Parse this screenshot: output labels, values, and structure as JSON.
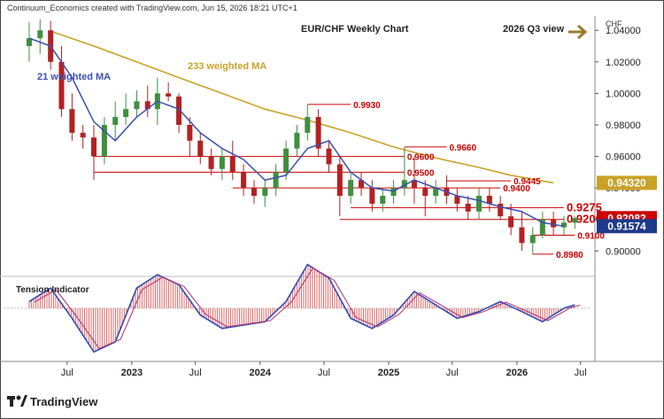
{
  "header": {
    "credit": "Continuum_Economics created with TradingView.com, Jun 15, 2026 18:21 UTC+1",
    "title": "EUR/CHF Weekly Chart",
    "view_label": "2026 Q3 view",
    "currency": "CHF"
  },
  "footer": {
    "brand": "TradingView"
  },
  "colors": {
    "candle_up": "#3f8f3f",
    "candle_down": "#b22222",
    "ma21": "#3a4fb0",
    "ma233": "#c9a227",
    "level": "#cc0000",
    "arrow": "#9a7a2e",
    "badge_ma233": "#c9a227",
    "badge_last": "#cc0000",
    "badge_blue": "#1f3a8a"
  },
  "chart_data": {
    "type": "candlestick",
    "title": "EUR/CHF Weekly Chart",
    "price_axis": {
      "ticks": [
        "1.04000",
        "1.02000",
        "1.00000",
        "0.98000",
        "0.96000",
        "0.94000",
        "0.92000",
        "0.90000"
      ],
      "range": [
        0.885,
        1.048
      ]
    },
    "time_axis": {
      "ticks": [
        "Jul",
        "2023",
        "Jul",
        "2024",
        "Jul",
        "2025",
        "Jul",
        "2026",
        "Jul"
      ]
    },
    "ma_labels": {
      "ma21": "21 weighted MA",
      "ma233": "233 weighted MA"
    },
    "levels": [
      {
        "label": "0.9930",
        "value": 0.993
      },
      {
        "label": "0.9660",
        "value": 0.966
      },
      {
        "label": "0.9600",
        "value": 0.96
      },
      {
        "label": "0.9500",
        "value": 0.95
      },
      {
        "label": "0.9445",
        "value": 0.9445
      },
      {
        "label": "0.9400",
        "value": 0.94
      },
      {
        "label": "0.9275",
        "value": 0.9275
      },
      {
        "label": "0.9200",
        "value": 0.92
      },
      {
        "label": "0.9100",
        "value": 0.91
      },
      {
        "label": "0.8980",
        "value": 0.898
      }
    ],
    "badges": [
      {
        "label": "0.94320",
        "value": 0.9432,
        "kind": "ma233"
      },
      {
        "label": "0.92082",
        "value": 0.92082,
        "kind": "last"
      },
      {
        "label": "0.91574",
        "value": 0.91574,
        "kind": "ma21"
      }
    ],
    "ma233": [
      [
        "2022-05",
        1.0395
      ],
      [
        "2022-09",
        1.03
      ],
      [
        "2023-01",
        1.02
      ],
      [
        "2023-05",
        1.01
      ],
      [
        "2023-09",
        1.0
      ],
      [
        "2024-01",
        0.99
      ],
      [
        "2024-05",
        0.983
      ],
      [
        "2024-09",
        0.975
      ],
      [
        "2025-01",
        0.966
      ],
      [
        "2025-05",
        0.959
      ],
      [
        "2025-09",
        0.953
      ],
      [
        "2025-12",
        0.948
      ],
      [
        "2026-04",
        0.9432
      ]
    ],
    "ma21": [
      [
        "2022-03",
        1.035
      ],
      [
        "2022-05",
        1.03
      ],
      [
        "2022-07",
        1.01
      ],
      [
        "2022-09",
        0.982
      ],
      [
        "2022-11",
        0.97
      ],
      [
        "2023-01",
        0.985
      ],
      [
        "2023-03",
        0.995
      ],
      [
        "2023-05",
        0.99
      ],
      [
        "2023-07",
        0.975
      ],
      [
        "2023-09",
        0.965
      ],
      [
        "2023-11",
        0.958
      ],
      [
        "2024-01",
        0.945
      ],
      [
        "2024-03",
        0.948
      ],
      [
        "2024-05",
        0.965
      ],
      [
        "2024-07",
        0.97
      ],
      [
        "2024-09",
        0.95
      ],
      [
        "2024-11",
        0.94
      ],
      [
        "2025-01",
        0.938
      ],
      [
        "2025-03",
        0.945
      ],
      [
        "2025-05",
        0.94
      ],
      [
        "2025-07",
        0.935
      ],
      [
        "2025-09",
        0.932
      ],
      [
        "2025-11",
        0.928
      ],
      [
        "2026-01",
        0.925
      ],
      [
        "2026-03",
        0.918
      ],
      [
        "2026-05",
        0.9157
      ]
    ],
    "candles": [
      [
        "2022-03",
        1.03,
        1.045,
        1.02,
        1.035
      ],
      [
        "2022-04",
        1.035,
        1.047,
        1.025,
        1.04
      ],
      [
        "2022-05",
        1.04,
        1.046,
        1.015,
        1.02
      ],
      [
        "2022-06",
        1.02,
        1.03,
        0.985,
        0.99
      ],
      [
        "2022-07",
        0.99,
        1.0,
        0.97,
        0.975
      ],
      [
        "2022-08",
        0.975,
        0.98,
        0.965,
        0.972
      ],
      [
        "2022-09",
        0.972,
        0.98,
        0.945,
        0.96
      ],
      [
        "2022-10",
        0.96,
        0.985,
        0.955,
        0.98
      ],
      [
        "2022-11",
        0.98,
        0.995,
        0.97,
        0.985
      ],
      [
        "2022-12",
        0.985,
        1.0,
        0.98,
        0.99
      ],
      [
        "2023-01",
        0.99,
        1.002,
        0.985,
        0.995
      ],
      [
        "2023-02",
        0.995,
        1.005,
        0.985,
        0.99
      ],
      [
        "2023-03",
        0.99,
        1.01,
        0.98,
        1.0
      ],
      [
        "2023-04",
        1.0,
        1.007,
        0.995,
        0.998
      ],
      [
        "2023-05",
        0.998,
        1.0,
        0.975,
        0.98
      ],
      [
        "2023-06",
        0.98,
        0.985,
        0.96,
        0.97
      ],
      [
        "2023-07",
        0.97,
        0.975,
        0.955,
        0.96
      ],
      [
        "2023-08",
        0.96,
        0.965,
        0.948,
        0.952
      ],
      [
        "2023-09",
        0.952,
        0.965,
        0.945,
        0.96
      ],
      [
        "2023-10",
        0.96,
        0.97,
        0.945,
        0.95
      ],
      [
        "2023-11",
        0.95,
        0.955,
        0.935,
        0.94
      ],
      [
        "2023-12",
        0.94,
        0.945,
        0.93,
        0.935
      ],
      [
        "2024-01",
        0.935,
        0.945,
        0.928,
        0.94
      ],
      [
        "2024-02",
        0.94,
        0.955,
        0.935,
        0.95
      ],
      [
        "2024-03",
        0.95,
        0.97,
        0.945,
        0.965
      ],
      [
        "2024-04",
        0.965,
        0.98,
        0.96,
        0.975
      ],
      [
        "2024-05",
        0.975,
        0.993,
        0.97,
        0.985
      ],
      [
        "2024-06",
        0.985,
        0.99,
        0.96,
        0.965
      ],
      [
        "2024-07",
        0.965,
        0.97,
        0.95,
        0.955
      ],
      [
        "2024-08",
        0.955,
        0.96,
        0.922,
        0.935
      ],
      [
        "2024-09",
        0.935,
        0.95,
        0.93,
        0.945
      ],
      [
        "2024-10",
        0.945,
        0.95,
        0.935,
        0.94
      ],
      [
        "2024-11",
        0.94,
        0.945,
        0.925,
        0.93
      ],
      [
        "2024-12",
        0.93,
        0.94,
        0.925,
        0.935
      ],
      [
        "2025-01",
        0.935,
        0.945,
        0.93,
        0.94
      ],
      [
        "2025-02",
        0.94,
        0.966,
        0.935,
        0.945
      ],
      [
        "2025-03",
        0.945,
        0.96,
        0.93,
        0.94
      ],
      [
        "2025-04",
        0.94,
        0.945,
        0.922,
        0.935
      ],
      [
        "2025-05",
        0.935,
        0.945,
        0.93,
        0.94
      ],
      [
        "2025-06",
        0.94,
        0.948,
        0.93,
        0.935
      ],
      [
        "2025-07",
        0.935,
        0.94,
        0.925,
        0.93
      ],
      [
        "2025-08",
        0.93,
        0.935,
        0.92,
        0.925
      ],
      [
        "2025-09",
        0.925,
        0.94,
        0.92,
        0.935
      ],
      [
        "2025-10",
        0.935,
        0.94,
        0.925,
        0.93
      ],
      [
        "2025-11",
        0.93,
        0.935,
        0.92,
        0.922
      ],
      [
        "2025-12",
        0.922,
        0.93,
        0.91,
        0.915
      ],
      [
        "2026-01",
        0.915,
        0.925,
        0.9,
        0.905
      ],
      [
        "2026-02",
        0.905,
        0.915,
        0.898,
        0.91
      ],
      [
        "2026-03",
        0.91,
        0.925,
        0.908,
        0.92
      ],
      [
        "2026-04",
        0.92,
        0.925,
        0.91,
        0.915
      ],
      [
        "2026-05",
        0.915,
        0.922,
        0.91,
        0.918
      ],
      [
        "2026-06",
        0.918,
        0.922,
        0.914,
        0.92082
      ]
    ],
    "tension": {
      "label": "Tension Indicator",
      "values": [
        [
          "2022-03",
          0.2
        ],
        [
          "2022-05",
          0.6
        ],
        [
          "2022-07",
          -0.3
        ],
        [
          "2022-09",
          -1.3
        ],
        [
          "2022-11",
          -1.0
        ],
        [
          "2023-01",
          0.6
        ],
        [
          "2023-03",
          1.0
        ],
        [
          "2023-05",
          0.7
        ],
        [
          "2023-07",
          -0.2
        ],
        [
          "2023-09",
          -0.6
        ],
        [
          "2023-11",
          -0.5
        ],
        [
          "2024-01",
          -0.4
        ],
        [
          "2024-03",
          0.2
        ],
        [
          "2024-05",
          1.3
        ],
        [
          "2024-07",
          0.9
        ],
        [
          "2024-09",
          -0.3
        ],
        [
          "2024-11",
          -0.6
        ],
        [
          "2025-01",
          -0.2
        ],
        [
          "2025-03",
          0.5
        ],
        [
          "2025-05",
          0.1
        ],
        [
          "2025-07",
          -0.3
        ],
        [
          "2025-09",
          -0.1
        ],
        [
          "2025-11",
          0.2
        ],
        [
          "2026-01",
          -0.1
        ],
        [
          "2026-03",
          -0.4
        ],
        [
          "2026-05",
          0.0
        ],
        [
          "2026-06",
          0.1
        ]
      ]
    }
  }
}
